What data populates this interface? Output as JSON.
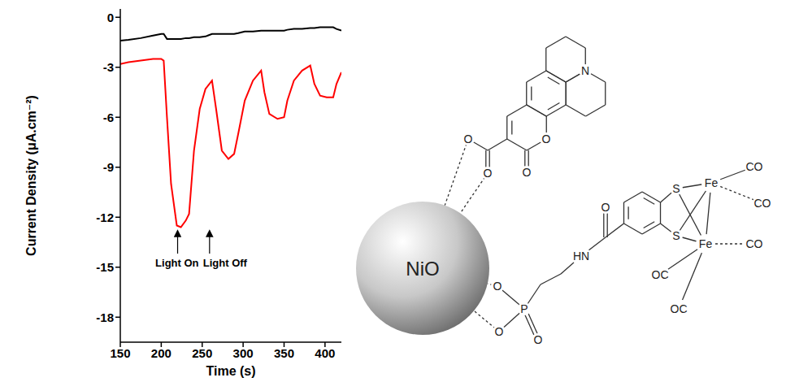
{
  "chart_data": {
    "type": "line",
    "xlabel": "Time (s)",
    "ylabel": "Current Density (μA.cm⁻²)",
    "x": [
      150,
      160,
      175,
      190,
      200,
      203,
      207,
      212,
      219,
      224,
      230,
      234,
      240,
      247,
      254,
      262,
      267,
      274,
      282,
      289,
      294,
      302,
      312,
      322,
      326,
      332,
      342,
      350,
      354,
      362,
      372,
      382,
      387,
      394,
      402,
      410,
      414,
      420
    ],
    "series": [
      {
        "color": "#000000",
        "values": [
          -1.4,
          -1.35,
          -1.25,
          -1.1,
          -1.0,
          -1.0,
          -1.3,
          -1.3,
          -1.3,
          -1.3,
          -1.25,
          -1.25,
          -1.2,
          -1.2,
          -1.15,
          -1.0,
          -1.0,
          -1.0,
          -1.0,
          -1.0,
          -0.95,
          -0.85,
          -0.85,
          -0.8,
          -0.8,
          -0.8,
          -0.8,
          -0.8,
          -0.75,
          -0.7,
          -0.7,
          -0.65,
          -0.65,
          -0.6,
          -0.6,
          -0.6,
          -0.7,
          -0.8
        ]
      },
      {
        "color": "#ff0000",
        "values": [
          -2.8,
          -2.7,
          -2.6,
          -2.5,
          -2.5,
          -2.6,
          -6,
          -10,
          -12.5,
          -12.6,
          -12.2,
          -11.8,
          -8,
          -5.5,
          -4.3,
          -3.8,
          -5.5,
          -8,
          -8.5,
          -8.2,
          -7,
          -5,
          -3.8,
          -3.2,
          -4.5,
          -5.8,
          -6.1,
          -6,
          -5,
          -3.8,
          -3.2,
          -2.9,
          -4,
          -4.7,
          -4.8,
          -4.8,
          -4,
          -3.3
        ]
      }
    ],
    "xlim": [
      150,
      420
    ],
    "xticks": [
      150,
      200,
      250,
      300,
      350,
      400
    ],
    "ylim": [
      -19.5,
      0.5
    ],
    "yticks": [
      0,
      -3,
      -6,
      -9,
      -12,
      -15,
      -18
    ],
    "grid": false,
    "annotations": [
      {
        "text": "Light On",
        "x": 220
      },
      {
        "text": "Light Off",
        "x": 259
      }
    ]
  },
  "diagram": {
    "particle": "NiO",
    "labels": [
      "N",
      "O",
      "O",
      "O",
      "O",
      "O",
      "O",
      "O",
      "P",
      "HN",
      "O",
      "S",
      "S",
      "Fe",
      "Fe",
      "CO",
      "CO",
      "CO",
      "OC",
      "OC"
    ]
  }
}
